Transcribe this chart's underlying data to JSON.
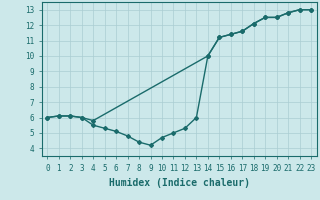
{
  "line1_x": [
    0,
    1,
    2,
    3,
    4,
    14,
    15,
    16,
    17,
    18,
    19,
    20,
    21,
    22,
    23
  ],
  "line1_y": [
    6.0,
    6.1,
    6.1,
    6.0,
    5.8,
    10.0,
    11.2,
    11.4,
    11.6,
    12.1,
    12.5,
    12.5,
    12.8,
    13.0,
    13.0
  ],
  "line2_x": [
    0,
    1,
    2,
    3,
    4,
    5,
    6,
    7,
    8,
    9,
    10,
    11,
    12,
    13,
    14,
    15,
    16,
    17,
    18,
    19,
    20,
    21,
    22,
    23
  ],
  "line2_y": [
    6.0,
    6.1,
    6.1,
    6.0,
    5.5,
    5.3,
    5.1,
    4.8,
    4.4,
    4.2,
    4.7,
    5.0,
    5.3,
    6.0,
    10.0,
    11.2,
    11.4,
    11.6,
    12.1,
    12.5,
    12.5,
    12.8,
    13.0,
    13.0
  ],
  "line_color": "#1a6b6b",
  "bg_color": "#cce8ea",
  "grid_color": "#aacdd2",
  "xlabel": "Humidex (Indice chaleur)",
  "xlabel_fontsize": 7,
  "ylabel_ticks": [
    4,
    5,
    6,
    7,
    8,
    9,
    10,
    11,
    12,
    13
  ],
  "xtick_labels": [
    "0",
    "1",
    "2",
    "3",
    "4",
    "5",
    "6",
    "7",
    "8",
    "9",
    "10",
    "11",
    "12",
    "13",
    "14",
    "15",
    "16",
    "17",
    "18",
    "19",
    "20",
    "21",
    "22",
    "23"
  ],
  "xlim": [
    -0.5,
    23.5
  ],
  "ylim": [
    3.5,
    13.5
  ],
  "marker": "D",
  "markersize": 2,
  "linewidth": 1.0
}
